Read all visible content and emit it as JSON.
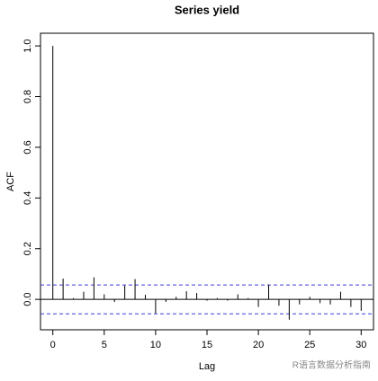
{
  "chart_data": {
    "type": "acf",
    "title": "Series  yield",
    "x_label": "Lag",
    "y_label": "ACF",
    "x": [
      0,
      1,
      2,
      3,
      4,
      5,
      6,
      7,
      8,
      9,
      10,
      11,
      12,
      13,
      14,
      15,
      16,
      17,
      18,
      19,
      20,
      21,
      22,
      23,
      24,
      25,
      26,
      27,
      28,
      29,
      30
    ],
    "values": [
      1,
      0.082,
      0.005,
      0.03,
      0.087,
      0.02,
      -0.01,
      0.055,
      0.08,
      0.018,
      -0.055,
      -0.01,
      0.01,
      0.032,
      0.025,
      -0.005,
      0.005,
      -0.005,
      0.02,
      0.005,
      -0.03,
      0.058,
      -0.025,
      -0.08,
      -0.02,
      0.01,
      -0.015,
      -0.02,
      0.03,
      -0.03,
      -0.045
    ],
    "color": "#000000",
    "ci_bounds": [
      0.057,
      -0.057
    ],
    "ci_color": "#3b3bdb",
    "xlim": [
      -1.2,
      31.2
    ],
    "ylim": [
      -0.12,
      1.05
    ],
    "xticks": [
      0,
      5,
      10,
      15,
      20,
      25,
      30
    ],
    "yticks": [
      {
        "value": 0,
        "label": "0.0"
      },
      {
        "value": 0.2,
        "label": "0.2"
      },
      {
        "value": 0.4,
        "label": "0.4"
      },
      {
        "value": 0.6,
        "label": "0.6"
      },
      {
        "value": 0.8,
        "label": "0.8"
      },
      {
        "value": 1,
        "label": "1.0"
      }
    ],
    "watermark": "R语言数据分析指南"
  }
}
